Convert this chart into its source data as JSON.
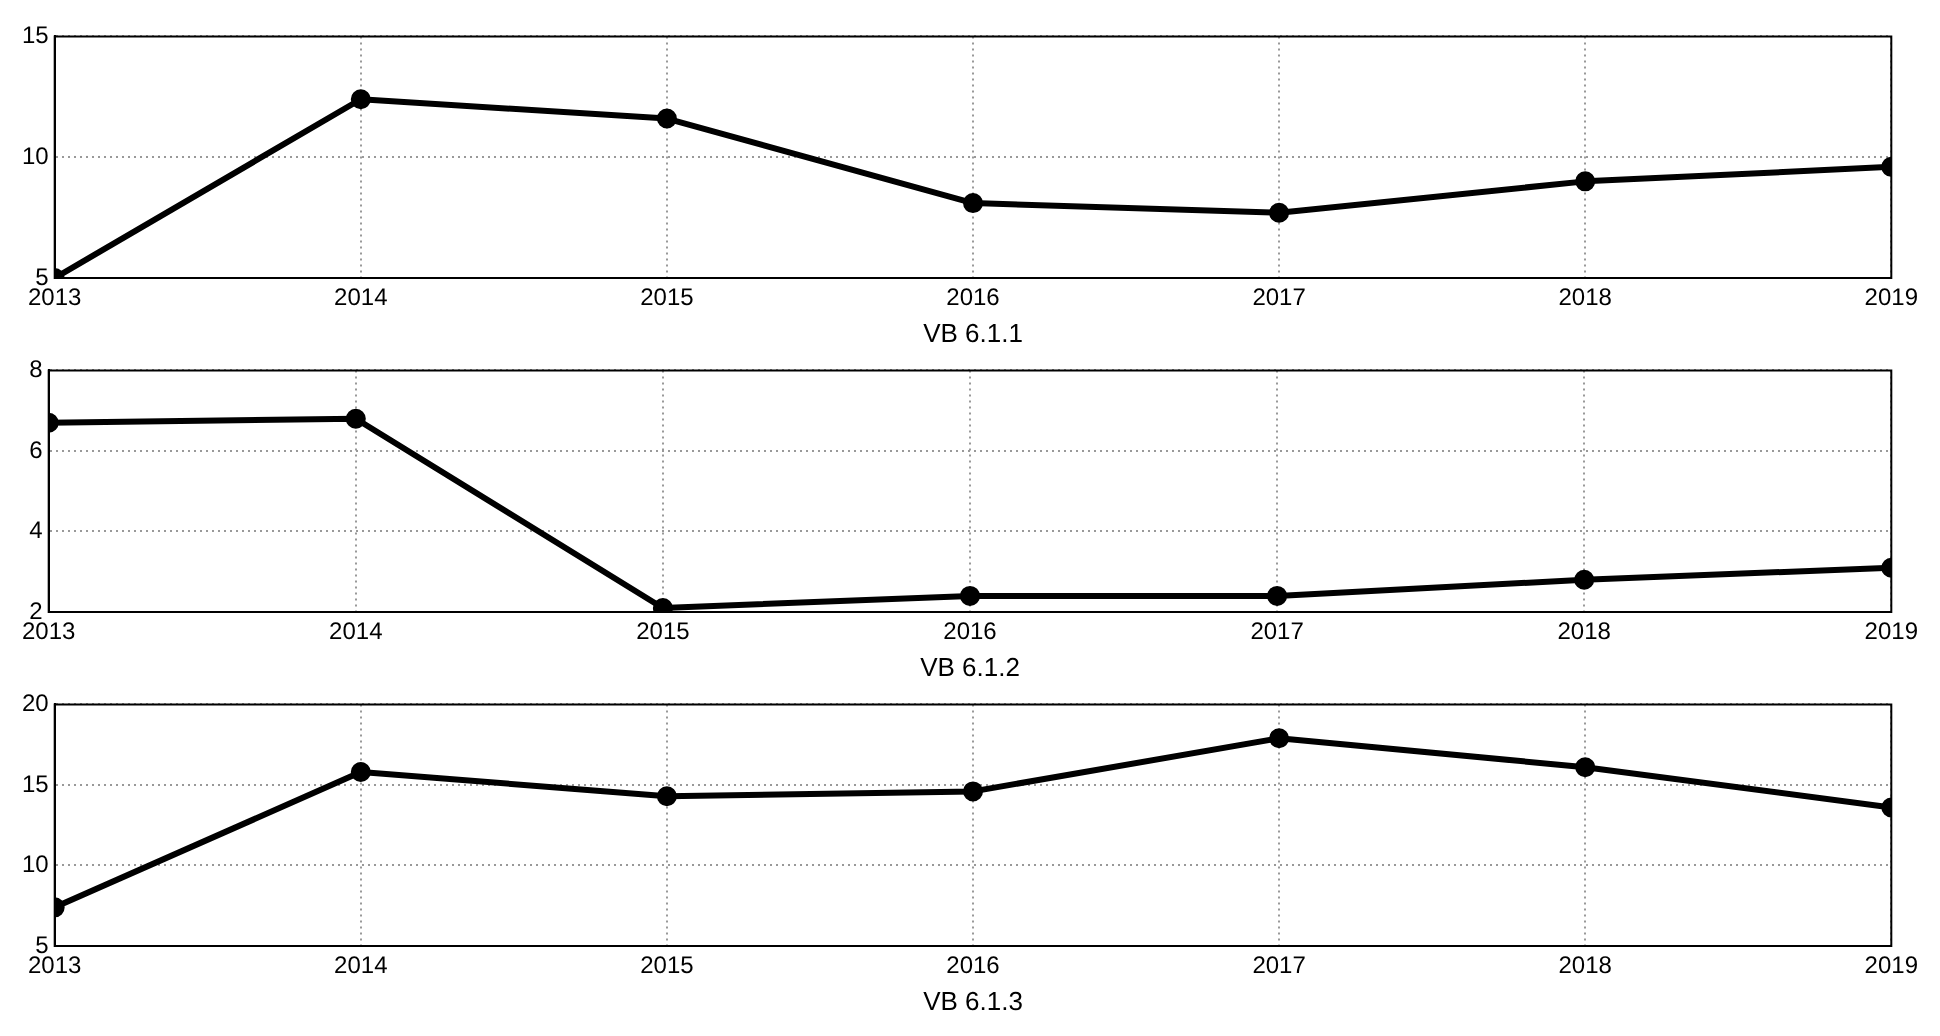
{
  "chart_data": [
    {
      "type": "line",
      "xlabel": "VB 6.1.1",
      "x": [
        2013,
        2014,
        2015,
        2016,
        2017,
        2018,
        2019
      ],
      "series": [
        {
          "color": "#000000",
          "values": [
            5.0,
            12.4,
            11.6,
            8.1,
            7.7,
            9.0,
            9.6
          ]
        }
      ],
      "xlim": [
        2013,
        2019
      ],
      "xticks": [
        2013,
        2014,
        2015,
        2016,
        2017,
        2018,
        2019
      ],
      "ylim": [
        5,
        15
      ],
      "yticks": [
        5,
        10,
        15
      ],
      "grid": true,
      "marker": "circle",
      "line_style": "solid"
    },
    {
      "type": "line",
      "xlabel": "VB 6.1.2",
      "x": [
        2013,
        2014,
        2015,
        2016,
        2017,
        2018,
        2019
      ],
      "series": [
        {
          "color": "#000000",
          "values": [
            6.7,
            6.8,
            2.1,
            2.4,
            2.4,
            2.8,
            3.1
          ]
        }
      ],
      "xlim": [
        2013,
        2019
      ],
      "xticks": [
        2013,
        2014,
        2015,
        2016,
        2017,
        2018,
        2019
      ],
      "ylim": [
        2,
        8
      ],
      "yticks": [
        2,
        4,
        6,
        8
      ],
      "grid": true,
      "marker": "circle",
      "line_style": "solid"
    },
    {
      "type": "line",
      "xlabel": "VB 6.1.3",
      "x": [
        2013,
        2014,
        2015,
        2016,
        2017,
        2018,
        2019
      ],
      "series": [
        {
          "color": "#000000",
          "values": [
            7.4,
            15.8,
            14.3,
            14.6,
            17.9,
            16.1,
            13.6
          ]
        }
      ],
      "xlim": [
        2013,
        2019
      ],
      "xticks": [
        2013,
        2014,
        2015,
        2016,
        2017,
        2018,
        2019
      ],
      "ylim": [
        5,
        20
      ],
      "yticks": [
        5,
        10,
        15,
        20
      ],
      "grid": true,
      "marker": "circle",
      "line_style": "solid"
    }
  ]
}
